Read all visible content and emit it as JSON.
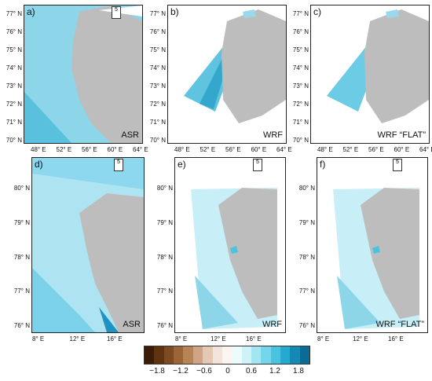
{
  "panels": [
    {
      "label": "a)",
      "model": "ASR",
      "lat_ticks": [
        "77° N",
        "76° N",
        "75° N",
        "74° N",
        "73° N",
        "72° N",
        "71° N",
        "70° N"
      ],
      "lon_ticks": [
        "48° E",
        "52° E",
        "56° E",
        "60° E",
        "64° E"
      ]
    },
    {
      "label": "b)",
      "model": "WRF",
      "lat_ticks": [
        "77° N",
        "76° N",
        "75° N",
        "74° N",
        "73° N",
        "72° N",
        "71° N",
        "70° N"
      ],
      "lon_ticks": [
        "48° E",
        "52° E",
        "56° E",
        "60° E",
        "64° E"
      ]
    },
    {
      "label": "c)",
      "model": "WRF “FLAT”",
      "lat_ticks": [
        "77° N",
        "76° N",
        "75° N",
        "74° N",
        "73° N",
        "72° N",
        "71° N",
        "70° N"
      ],
      "lon_ticks": [
        "48° E",
        "52° E",
        "56° E",
        "60° E",
        "64° E"
      ]
    },
    {
      "label": "d)",
      "model": "ASR",
      "lat_ticks": [
        "80° N",
        "79° N",
        "78° N",
        "77° N",
        "76° N"
      ],
      "lon_ticks": [
        "8° E",
        "12° E",
        "16° E"
      ]
    },
    {
      "label": "e)",
      "model": "WRF",
      "lat_ticks": [
        "80° N",
        "79° N",
        "78° N",
        "77° N",
        "76° N"
      ],
      "lon_ticks": [
        "8° E",
        "12° E",
        "16° E"
      ]
    },
    {
      "label": "f)",
      "model": "WRF “FLAT”",
      "lat_ticks": [
        "80° N",
        "79° N",
        "78° N",
        "77° N",
        "76° N"
      ],
      "lon_ticks": [
        "8° E",
        "12° E",
        "16° E"
      ]
    }
  ],
  "ref_vector_label": "5",
  "colorbar": {
    "ticks": [
      "−1.8",
      "−1.2",
      "−0.6",
      "0",
      "0.6",
      "1.2",
      "1.8"
    ],
    "colors": [
      "#3b1c06",
      "#5e3410",
      "#7e4a22",
      "#9c6538",
      "#b78555",
      "#cfa585",
      "#e3c9b3",
      "#f2e4da",
      "#fbf5f0",
      "#eefbfd",
      "#cdf2f8",
      "#a3e6f2",
      "#74d6ea",
      "#49c3e0",
      "#26a9cf",
      "#1389b3",
      "#0a6b95"
    ]
  }
}
